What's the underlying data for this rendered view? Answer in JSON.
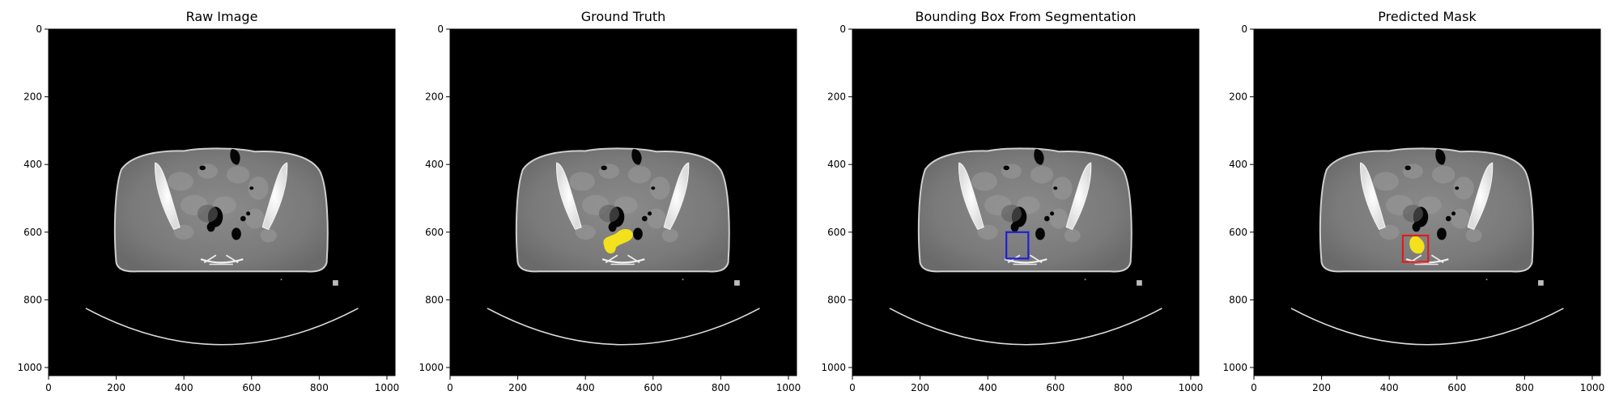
{
  "panels": [
    {
      "title": "Raw Image",
      "overlay": "none"
    },
    {
      "title": "Ground Truth",
      "overlay": "mask"
    },
    {
      "title": "Bounding Box From Segmentation",
      "overlay": "box"
    },
    {
      "title": "Predicted Mask",
      "overlay": "mask_box"
    }
  ],
  "axes": {
    "x_ticks": [
      0,
      200,
      400,
      600,
      800,
      1000
    ],
    "y_ticks": [
      0,
      200,
      400,
      600,
      800,
      1000
    ],
    "x_range": [
      0,
      1024
    ],
    "y_range": [
      0,
      1024
    ]
  },
  "colors": {
    "mask": "#f2e11c",
    "box_segmentation": "#1f1fd6",
    "box_predicted": "#e01b1b"
  },
  "annotations": {
    "bbox_from_segmentation": [
      455,
      600,
      520,
      678
    ],
    "bbox_predicted": [
      440,
      610,
      515,
      688
    ]
  }
}
